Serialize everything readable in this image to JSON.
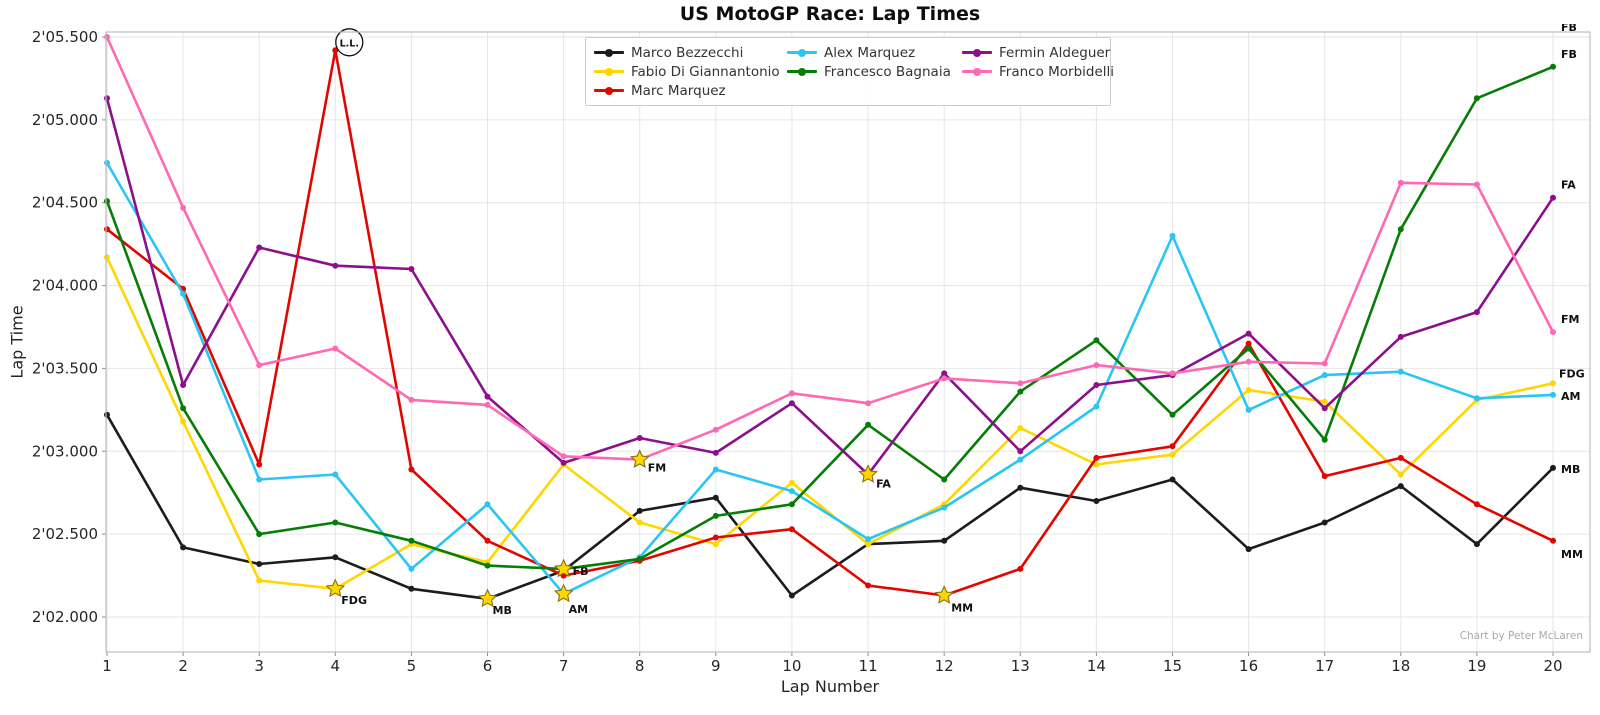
{
  "title": "US MotoGP Race: Lap Times",
  "credit": "Chart by Peter McLaren",
  "x_axis": {
    "label": "Lap Number"
  },
  "y_axis": {
    "label": "Lap Time",
    "ticks": [
      {
        "value": 125.5,
        "label": "2'05.500"
      },
      {
        "value": 125.0,
        "label": "2'05.000"
      },
      {
        "value": 124.5,
        "label": "2'04.500"
      },
      {
        "value": 124.0,
        "label": "2'04.000"
      },
      {
        "value": 123.5,
        "label": "2'03.500"
      },
      {
        "value": 123.0,
        "label": "2'03.000"
      },
      {
        "value": 122.5,
        "label": "2'02.500"
      },
      {
        "value": 122.0,
        "label": "2'02.000"
      }
    ]
  },
  "annotations": {
    "long_lap": {
      "text": "L.L.",
      "rider": "Marc Marquez",
      "lap": 4
    },
    "clipped_top_right_label": {
      "text": "FB"
    }
  },
  "chart_data": {
    "type": "line",
    "x": [
      1,
      2,
      3,
      4,
      5,
      6,
      7,
      8,
      9,
      10,
      11,
      12,
      13,
      14,
      15,
      16,
      17,
      18,
      19,
      20
    ],
    "xlabel": "Lap Number",
    "ylabel": "Lap Time",
    "ylim": [
      121.79,
      125.53
    ],
    "grid": true,
    "legend_position": "upper center, 3 columns",
    "units": "seconds (2'0X.XXX shown on axis)",
    "series": [
      {
        "name": "Marco Bezzecchi",
        "abbr": "MB",
        "color": "#1c1c1c",
        "best_lap": 6,
        "values": [
          123.22,
          122.42,
          122.32,
          122.36,
          122.17,
          122.11,
          122.28,
          122.64,
          122.72,
          122.13,
          122.44,
          122.46,
          122.78,
          122.7,
          122.83,
          122.41,
          122.57,
          122.79,
          122.44,
          122.9
        ],
        "star_dx": 5,
        "star_dy": 15,
        "end_dx": 8,
        "end_dy": 5
      },
      {
        "name": "Fabio Di Giannantonio",
        "abbr": "FDG",
        "color": "#FFD700",
        "best_lap": 4,
        "values": [
          124.17,
          123.18,
          122.22,
          122.17,
          122.44,
          122.33,
          122.92,
          122.57,
          122.44,
          122.81,
          122.44,
          122.68,
          123.14,
          122.92,
          122.98,
          123.37,
          123.3,
          122.86,
          123.31,
          123.41
        ],
        "star_dx": 6,
        "star_dy": 15,
        "end_dx": 6,
        "end_dy": -6
      },
      {
        "name": "Marc Marquez",
        "abbr": "MM",
        "color": "#E10600",
        "best_lap": 12,
        "values": [
          124.34,
          123.98,
          122.92,
          125.42,
          122.89,
          122.46,
          122.25,
          122.34,
          122.48,
          122.53,
          122.19,
          122.13,
          122.29,
          122.96,
          123.03,
          123.65,
          122.85,
          122.96,
          122.68,
          122.46
        ],
        "star_dx": 7,
        "star_dy": 16,
        "end_dx": 8,
        "end_dy": 17
      },
      {
        "name": "Alex Marquez",
        "abbr": "AM",
        "color": "#2BC5F4",
        "best_lap": 7,
        "values": [
          124.74,
          123.95,
          122.83,
          122.86,
          122.29,
          122.68,
          122.14,
          122.36,
          122.89,
          122.76,
          122.47,
          122.66,
          122.95,
          123.27,
          124.3,
          123.25,
          123.46,
          123.48,
          123.32,
          123.34
        ],
        "star_dx": 5,
        "star_dy": 19,
        "end_dx": 8,
        "end_dy": 5
      },
      {
        "name": "Francesco Bagnaia",
        "abbr": "FB",
        "color": "#067D06",
        "best_lap": 7,
        "values": [
          124.51,
          123.26,
          122.5,
          122.57,
          122.46,
          122.31,
          122.29,
          122.35,
          122.61,
          122.68,
          123.16,
          122.83,
          123.36,
          123.67,
          123.22,
          123.62,
          123.07,
          124.34,
          125.13,
          125.32
        ],
        "star_dx": 9,
        "star_dy": 6,
        "end_dx": 8,
        "end_dy": -9
      },
      {
        "name": "Fermin Aldeguer",
        "abbr": "FA",
        "color": "#8C0F8C",
        "best_lap": 11,
        "values": [
          125.13,
          123.4,
          124.23,
          124.12,
          124.1,
          123.33,
          122.93,
          123.08,
          122.99,
          123.29,
          122.86,
          123.47,
          123.0,
          123.4,
          123.46,
          123.71,
          123.26,
          123.69,
          123.84,
          124.53
        ],
        "star_dx": 8,
        "star_dy": 13,
        "end_dx": 8,
        "end_dy": -9
      },
      {
        "name": "Franco Morbidelli",
        "abbr": "FM",
        "color": "#FF69B4",
        "best_lap": 8,
        "values": [
          125.5,
          124.47,
          123.52,
          123.62,
          123.31,
          123.28,
          122.97,
          122.95,
          123.13,
          123.35,
          123.29,
          123.44,
          123.41,
          123.52,
          123.47,
          123.54,
          123.53,
          124.62,
          124.61,
          123.72
        ],
        "star_dx": 8,
        "star_dy": 12,
        "end_dx": 8,
        "end_dy": -9
      }
    ],
    "best_lap_marker": "gold star with rider initials",
    "end_labels": "rider initials at lap 20"
  },
  "legend_columns": [
    [
      0,
      1,
      2
    ],
    [
      3,
      4
    ],
    [
      5,
      6
    ]
  ]
}
